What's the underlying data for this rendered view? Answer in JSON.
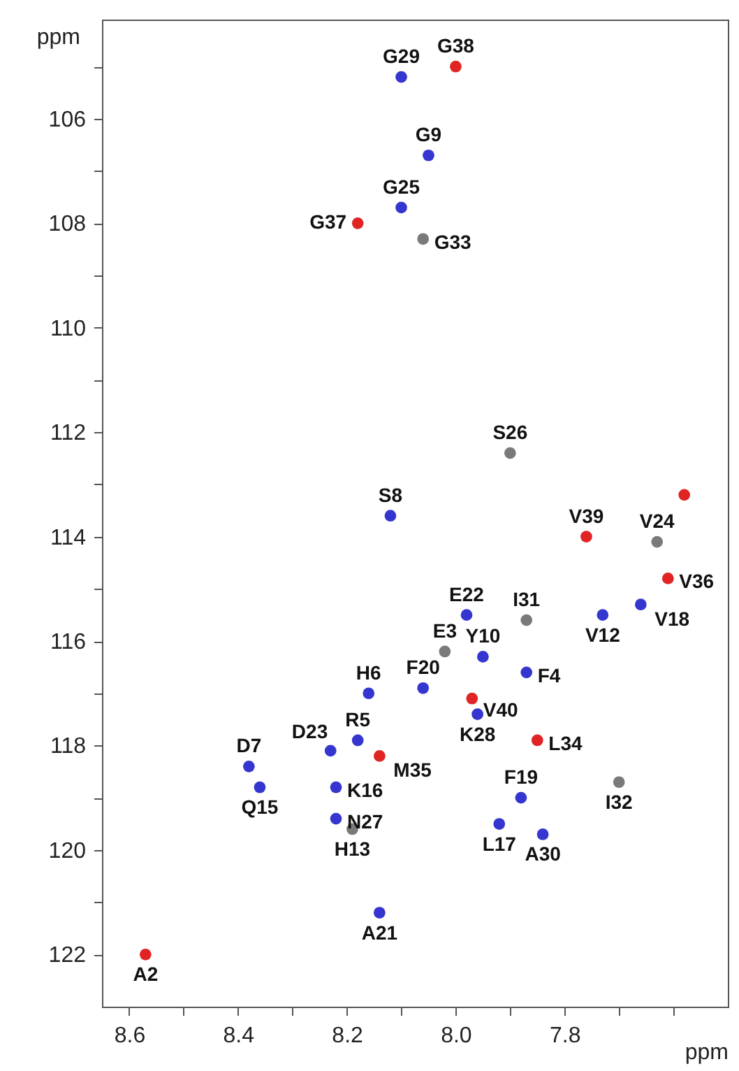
{
  "chart_data": {
    "type": "scatter",
    "xlabel": "ppm",
    "ylabel": "ppm",
    "xlim": [
      8.65,
      7.5
    ],
    "ylim": [
      123,
      104.1
    ],
    "xticks": [
      {
        "value": 8.6,
        "label": "8.6"
      },
      {
        "value": 8.5,
        "label": null
      },
      {
        "value": 8.4,
        "label": "8.4"
      },
      {
        "value": 8.3,
        "label": null
      },
      {
        "value": 8.2,
        "label": "8.2"
      },
      {
        "value": 8.1,
        "label": null
      },
      {
        "value": 8.0,
        "label": "8.0"
      },
      {
        "value": 7.9,
        "label": null
      },
      {
        "value": 7.8,
        "label": "7.8"
      },
      {
        "value": 7.7,
        "label": null
      },
      {
        "value": 7.6,
        "label": null
      }
    ],
    "yticks": [
      {
        "value": 105,
        "label": null
      },
      106,
      {
        "value": 107,
        "label": null
      },
      108,
      {
        "value": 109,
        "label": null
      },
      110,
      {
        "value": 111,
        "label": null
      },
      112,
      {
        "value": 113,
        "label": null
      },
      114,
      {
        "value": 115,
        "label": null
      },
      116,
      {
        "value": 117,
        "label": null
      },
      118,
      {
        "value": 119,
        "label": null
      },
      120,
      {
        "value": 121,
        "label": null
      },
      122
    ],
    "grid": false,
    "series": [
      {
        "color": "#e02424",
        "x": [
          8.0,
          8.18,
          7.76,
          7.58,
          7.61,
          7.97,
          8.14,
          7.85,
          8.57
        ],
        "values": [
          105.0,
          108.0,
          114.0,
          113.2,
          114.8,
          117.1,
          118.2,
          117.9,
          122.0
        ]
      },
      {
        "color": "#3535d0",
        "x": [
          8.1,
          8.05,
          8.1,
          8.12,
          7.98,
          7.73,
          7.66,
          7.95,
          7.87,
          8.16,
          8.06,
          7.96,
          8.18,
          8.23,
          8.38,
          8.36,
          8.22,
          8.22,
          7.88,
          7.92,
          7.84,
          8.14
        ],
        "values": [
          105.2,
          106.7,
          107.7,
          113.6,
          115.5,
          115.5,
          115.3,
          116.3,
          116.6,
          117.0,
          116.9,
          117.4,
          117.9,
          118.1,
          118.4,
          118.8,
          118.8,
          119.4,
          119.0,
          119.5,
          119.7,
          121.2
        ]
      },
      {
        "color": "#7a7a7a",
        "x": [
          8.06,
          7.9,
          7.63,
          7.87,
          8.02,
          7.7,
          8.19
        ],
        "values": [
          108.3,
          112.4,
          114.1,
          115.6,
          116.2,
          118.7,
          119.6
        ]
      }
    ],
    "annotations": [
      {
        "text": "G29",
        "x": 8.1,
        "y": 105.2
      },
      {
        "text": "G38",
        "x": 8.0,
        "y": 105.0
      },
      {
        "text": "G9",
        "x": 8.05,
        "y": 106.7
      },
      {
        "text": "G25",
        "x": 8.1,
        "y": 107.7
      },
      {
        "text": "G37",
        "x": 8.18,
        "y": 108.0
      },
      {
        "text": "G33",
        "x": 8.06,
        "y": 108.3
      },
      {
        "text": "S26",
        "x": 7.9,
        "y": 112.4
      },
      {
        "text": "S8",
        "x": 8.12,
        "y": 113.6
      },
      {
        "text": "V39",
        "x": 7.76,
        "y": 114.0
      },
      {
        "text": "V24",
        "x": 7.63,
        "y": 114.1
      },
      {
        "text": "V36",
        "x": 7.61,
        "y": 114.8
      },
      {
        "text": "E22",
        "x": 7.98,
        "y": 115.5
      },
      {
        "text": "I31",
        "x": 7.87,
        "y": 115.6
      },
      {
        "text": "V18",
        "x": 7.66,
        "y": 115.3
      },
      {
        "text": "V12",
        "x": 7.73,
        "y": 115.5
      },
      {
        "text": "E3",
        "x": 8.02,
        "y": 116.2
      },
      {
        "text": "Y10",
        "x": 7.95,
        "y": 116.3
      },
      {
        "text": "F4",
        "x": 7.87,
        "y": 116.6
      },
      {
        "text": "H6",
        "x": 8.16,
        "y": 117.0
      },
      {
        "text": "F20",
        "x": 8.06,
        "y": 116.9
      },
      {
        "text": "V40",
        "x": 7.97,
        "y": 117.1
      },
      {
        "text": "K28",
        "x": 7.96,
        "y": 117.4
      },
      {
        "text": "L34",
        "x": 7.85,
        "y": 117.9
      },
      {
        "text": "D7",
        "x": 8.38,
        "y": 118.4
      },
      {
        "text": "D23",
        "x": 8.23,
        "y": 118.1
      },
      {
        "text": "R5",
        "x": 8.18,
        "y": 117.9
      },
      {
        "text": "M35",
        "x": 8.14,
        "y": 118.2
      },
      {
        "text": "K16",
        "x": 8.22,
        "y": 118.8
      },
      {
        "text": "Q15",
        "x": 8.36,
        "y": 118.8
      },
      {
        "text": "N27",
        "x": 8.22,
        "y": 119.4
      },
      {
        "text": "H13",
        "x": 8.19,
        "y": 119.6
      },
      {
        "text": "F19",
        "x": 7.88,
        "y": 119.0
      },
      {
        "text": "I32",
        "x": 7.7,
        "y": 118.7
      },
      {
        "text": "L17",
        "x": 7.92,
        "y": 119.5
      },
      {
        "text": "A30",
        "x": 7.84,
        "y": 119.7
      },
      {
        "text": "A21",
        "x": 8.14,
        "y": 121.2
      },
      {
        "text": "A2",
        "x": 8.57,
        "y": 122.0
      }
    ]
  }
}
